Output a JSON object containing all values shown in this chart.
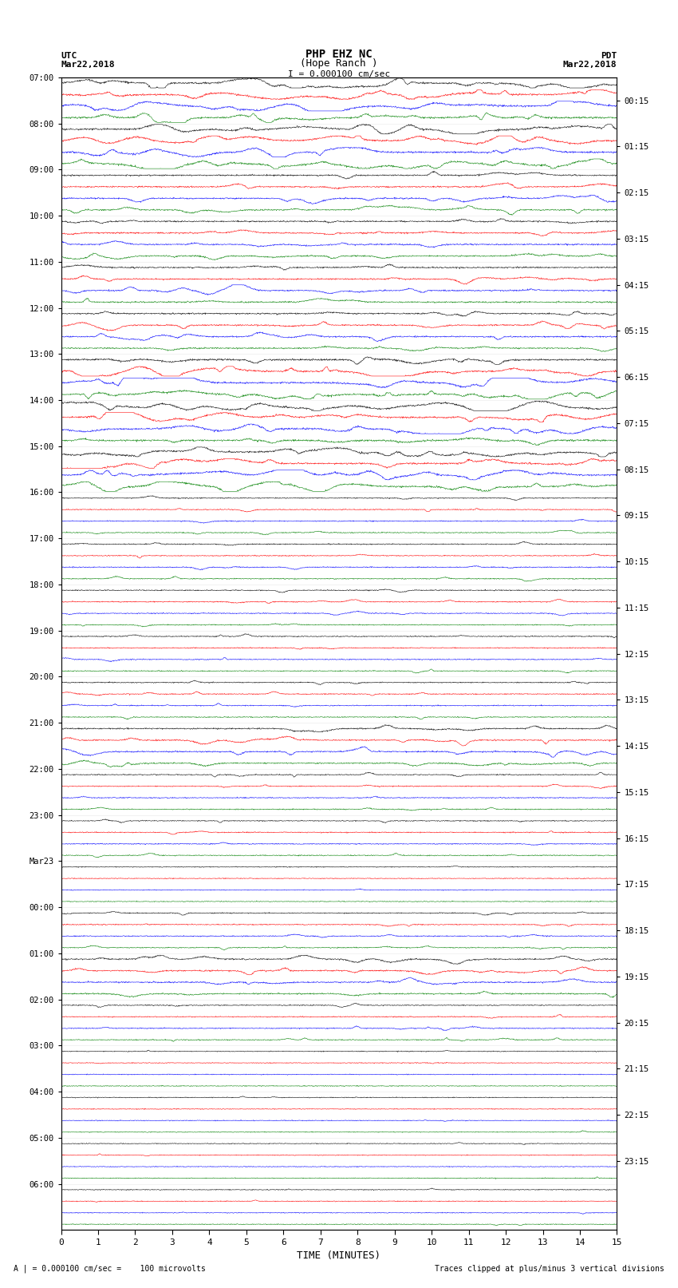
{
  "title_line1": "PHP EHZ NC",
  "title_line2": "(Hope Ranch )",
  "title_line3": "I = 0.000100 cm/sec",
  "label_utc": "UTC",
  "label_pdt": "PDT",
  "label_date_left": "Mar22,2018",
  "label_date_right": "Mar22,2018",
  "xlabel": "TIME (MINUTES)",
  "footer_left": "A | = 0.000100 cm/sec =    100 microvolts",
  "footer_right": "Traces clipped at plus/minus 3 vertical divisions",
  "left_times": [
    "07:00",
    "08:00",
    "09:00",
    "10:00",
    "11:00",
    "12:00",
    "13:00",
    "14:00",
    "15:00",
    "16:00",
    "17:00",
    "18:00",
    "19:00",
    "20:00",
    "21:00",
    "22:00",
    "23:00",
    "Mar23",
    "00:00",
    "01:00",
    "02:00",
    "03:00",
    "04:00",
    "05:00",
    "06:00"
  ],
  "right_times": [
    "00:15",
    "01:15",
    "02:15",
    "03:15",
    "04:15",
    "05:15",
    "06:15",
    "07:15",
    "08:15",
    "09:15",
    "10:15",
    "11:15",
    "12:15",
    "13:15",
    "14:15",
    "15:15",
    "16:15",
    "17:15",
    "18:15",
    "19:15",
    "20:15",
    "21:15",
    "22:15",
    "23:15"
  ],
  "n_rows": 25,
  "n_cols": 4,
  "x_min": 0,
  "x_max": 15,
  "x_ticks": [
    0,
    1,
    2,
    3,
    4,
    5,
    6,
    7,
    8,
    9,
    10,
    11,
    12,
    13,
    14,
    15
  ],
  "colors": [
    "black",
    "red",
    "blue",
    "green"
  ],
  "background_color": "white",
  "plot_bg_color": "white",
  "amplitude_scale": 0.42,
  "seed": 42,
  "activity_map": [
    3,
    3,
    2,
    2,
    2,
    2,
    3,
    3,
    3,
    1,
    1,
    1,
    1,
    1,
    2,
    1,
    1,
    0,
    1,
    2,
    1,
    0,
    0,
    0,
    0
  ]
}
